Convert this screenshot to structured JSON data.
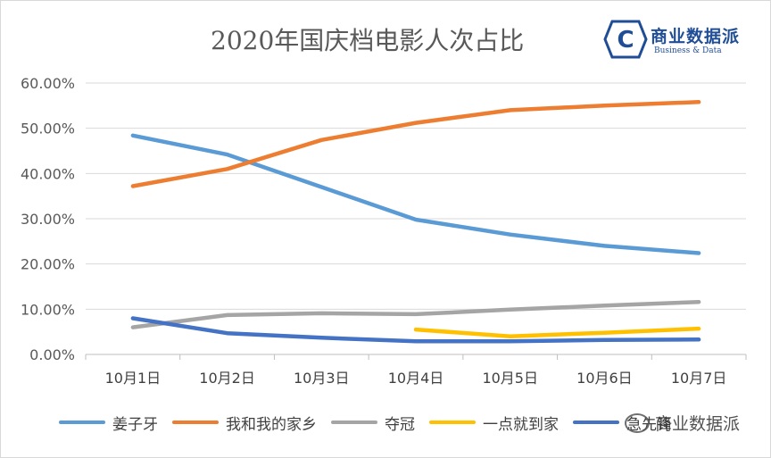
{
  "chart_data": {
    "type": "line",
    "title": "2020年国庆档电影人次占比",
    "categories": [
      "10月1日",
      "10月2日",
      "10月3日",
      "10月4日",
      "10月5日",
      "10月6日",
      "10月7日"
    ],
    "y_ticks": [
      "0.00%",
      "10.00%",
      "20.00%",
      "30.00%",
      "40.00%",
      "50.00%",
      "60.00%"
    ],
    "ylim": [
      0,
      0.6
    ],
    "grid": true,
    "legend_position": "bottom",
    "series": [
      {
        "name": "姜子牙",
        "color": "#5b9bd5",
        "values": [
          0.484,
          0.442,
          0.37,
          0.298,
          0.265,
          0.24,
          0.224
        ]
      },
      {
        "name": "我和我的家乡",
        "color": "#ed7d31",
        "values": [
          0.372,
          0.41,
          0.474,
          0.512,
          0.54,
          0.55,
          0.558
        ]
      },
      {
        "name": "夺冠",
        "color": "#a5a5a5",
        "values": [
          0.06,
          0.087,
          0.091,
          0.089,
          0.099,
          0.108,
          0.116
        ]
      },
      {
        "name": "一点就到家",
        "color": "#ffc000",
        "values": [
          null,
          null,
          null,
          0.055,
          0.04,
          0.048,
          0.057
        ]
      },
      {
        "name": "急先锋",
        "color": "#4472c4",
        "values": [
          0.08,
          0.047,
          0.037,
          0.029,
          0.029,
          0.032,
          0.033
        ]
      }
    ]
  },
  "logo": {
    "icon_letter": "C",
    "name_cn": "商业数据派",
    "name_en": "Business & Data"
  },
  "watermark": {
    "text": "商业数据派"
  }
}
